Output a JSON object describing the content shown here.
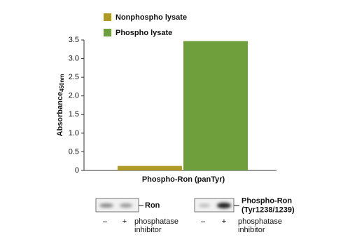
{
  "chart_data": {
    "type": "bar",
    "y_label": "Absorbance",
    "y_label_sub": "450nm",
    "categories": [
      "Phospho-Ron (panTyr)"
    ],
    "series": [
      {
        "name": "Nonphospho lysate",
        "color": "#b09a26",
        "values": [
          0.12
        ]
      },
      {
        "name": "Phospho lysate",
        "color": "#6e9f3c",
        "values": [
          3.47
        ]
      }
    ],
    "ylim": [
      0,
      3.5
    ],
    "yticks": [
      0,
      0.5,
      {
        "value": 1,
        "label": "1.0"
      },
      1.5,
      {
        "value": 2,
        "label": "2.0"
      },
      2.5,
      {
        "value": 3,
        "label": "3.0"
      },
      3.5
    ]
  },
  "blots": [
    {
      "label": [
        "Ron"
      ],
      "minus": "–",
      "plus": "+",
      "caption": [
        "phosphatase",
        "inhibitor"
      ]
    },
    {
      "label": [
        "Phospho-Ron",
        "(Tyr1238/1239)"
      ],
      "minus": "–",
      "plus": "+",
      "caption": [
        "phosphatase",
        "inhibitor"
      ]
    }
  ]
}
